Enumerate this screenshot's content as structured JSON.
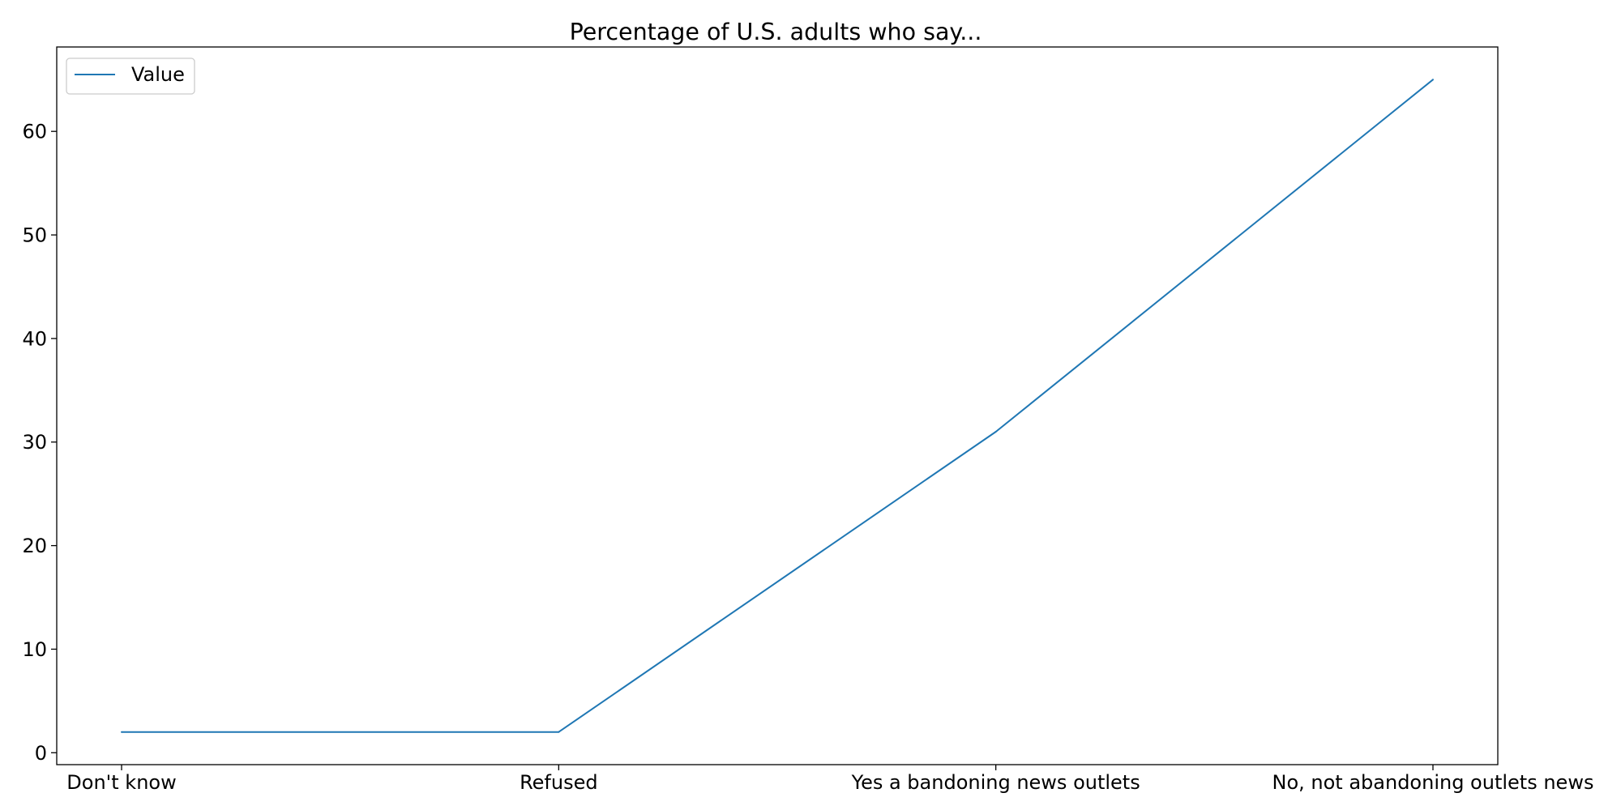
{
  "chart_data": {
    "type": "line",
    "title": "Percentage of U.S. adults who say...",
    "xlabel": "",
    "ylabel": "",
    "categories": [
      "Don't know",
      "Refused",
      "Yes a bandoning news outlets",
      "No, not abandoning outlets news"
    ],
    "series": [
      {
        "name": "Value",
        "values": [
          2,
          2,
          31,
          65
        ],
        "color": "#1f77b4"
      }
    ],
    "ylim": [
      -1.15,
      68.15
    ],
    "yticks": [
      0,
      10,
      20,
      30,
      40,
      50,
      60
    ],
    "grid": false,
    "legend": "upper-left"
  }
}
